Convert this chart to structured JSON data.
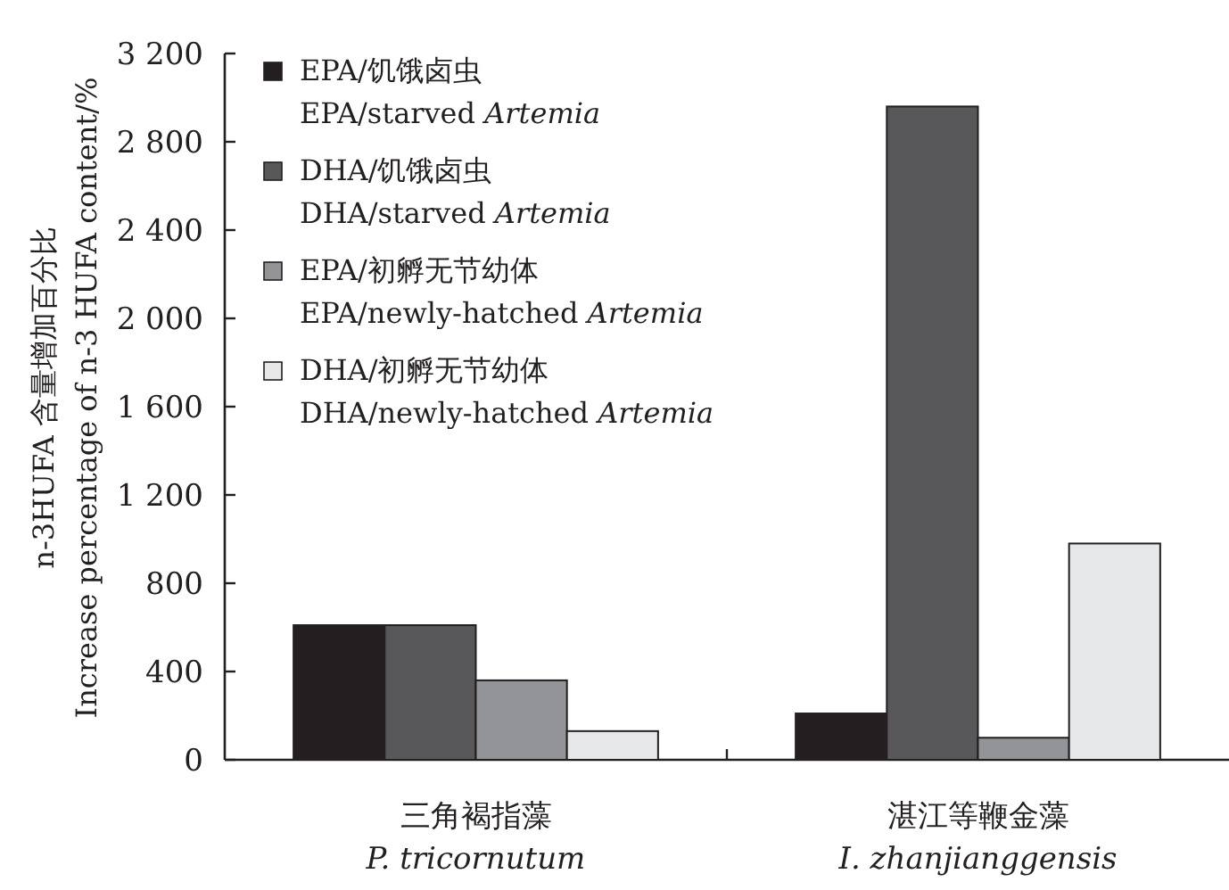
{
  "chart_data": {
    "type": "bar",
    "ylabel": "n-3HUFA 含量增加百分比\nIncrease percentage of n-3 HUFA content/%",
    "categories": [
      "三角褐指藻\n*P. tricornutum*",
      "湛江等鞭金藻\n*I. zhanjianggensis*"
    ],
    "series": [
      {
        "name": "EPA/饥饿卤虫\nEPA/starved *Artemia*",
        "color": "#231f20",
        "values": [
          610,
          210
        ]
      },
      {
        "name": "DHA/饥饿卤虫\nDHA/starved *Artemia*",
        "color": "#58585a",
        "values": [
          610,
          2960
        ]
      },
      {
        "name": "EPA/初孵无节幼体\nEPA/newly-hatched *Artemia*",
        "color": "#939497",
        "values": [
          360,
          100
        ]
      },
      {
        "name": "DHA/初孵无节幼体\nDHA/newly-hatched *Artemia*",
        "color": "#e6e7e8",
        "values": [
          130,
          980
        ]
      }
    ],
    "ylim": [
      0,
      3200
    ],
    "yticks": [
      0,
      400,
      800,
      {
        "value": 1200,
        "label": "1 200"
      },
      {
        "value": 1600,
        "label": "1 600"
      },
      {
        "value": 2000,
        "label": "2 000"
      },
      {
        "value": 2400,
        "label": "2 400"
      },
      {
        "value": 2800,
        "label": "2 800"
      },
      {
        "value": 3200,
        "label": "3 200"
      }
    ],
    "grid": false,
    "legend": "top left"
  }
}
